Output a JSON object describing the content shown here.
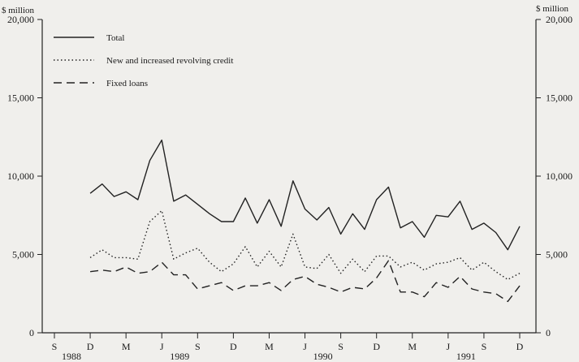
{
  "chart_data": {
    "type": "line",
    "unit_label": "$ million",
    "ylim": [
      0,
      20000
    ],
    "y_ticks": [
      0,
      5000,
      10000,
      15000,
      20000
    ],
    "y_tick_labels": [
      "0",
      "5,000",
      "10,000",
      "15,000",
      "20,000"
    ],
    "right_y_tick_labels": [
      "0",
      "5,000",
      "10,000",
      "15,000",
      "20,000"
    ],
    "x_month_labels": [
      "S",
      "D",
      "M",
      "J",
      "S",
      "D",
      "M",
      "J",
      "S",
      "D",
      "M",
      "J",
      "S",
      "D"
    ],
    "x_year_labels": [
      "1988",
      "1989",
      "1990",
      "1991"
    ],
    "grid": false,
    "legend_placement": "top-left",
    "series": [
      {
        "name": "Total",
        "style": "solid",
        "values": [
          8900,
          9500,
          8700,
          9000,
          8500,
          11000,
          12300,
          8400,
          8800,
          8200,
          7600,
          7100,
          7100,
          8600,
          7000,
          8500,
          6800,
          9700,
          7900,
          7200,
          8000,
          6300,
          7600,
          6600,
          8500,
          9300,
          6700,
          7100,
          6100,
          7500,
          7400,
          8400,
          6600,
          7000,
          6400,
          5300,
          6800
        ]
      },
      {
        "name": "New and increased revolving credit",
        "style": "dotted",
        "values": [
          4800,
          5300,
          4800,
          4800,
          4700,
          7100,
          7800,
          4700,
          5100,
          5400,
          4500,
          3900,
          4400,
          5500,
          4200,
          5200,
          4200,
          6300,
          4200,
          4100,
          5000,
          3800,
          4700,
          3900,
          4900,
          4900,
          4200,
          4500,
          4000,
          4400,
          4500,
          4800,
          4000,
          4500,
          3900,
          3400,
          3800
        ]
      },
      {
        "name": "Fixed loans",
        "style": "dashed",
        "values": [
          3900,
          4000,
          3900,
          4200,
          3800,
          3900,
          4500,
          3700,
          3700,
          2800,
          3000,
          3200,
          2700,
          3000,
          3000,
          3200,
          2700,
          3400,
          3600,
          3100,
          2900,
          2600,
          2900,
          2800,
          3500,
          4600,
          2600,
          2600,
          2300,
          3200,
          2900,
          3600,
          2800,
          2600,
          2500,
          2000,
          3000
        ]
      }
    ]
  }
}
